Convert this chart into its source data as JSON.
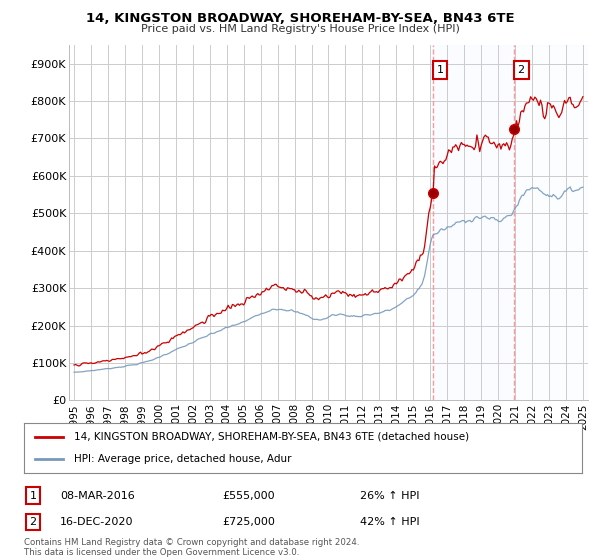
{
  "title1": "14, KINGSTON BROADWAY, SHOREHAM-BY-SEA, BN43 6TE",
  "title2": "Price paid vs. HM Land Registry's House Price Index (HPI)",
  "ylabel_ticks": [
    "£0",
    "£100K",
    "£200K",
    "£300K",
    "£400K",
    "£500K",
    "£600K",
    "£700K",
    "£800K",
    "£900K"
  ],
  "ytick_vals": [
    0,
    100000,
    200000,
    300000,
    400000,
    500000,
    600000,
    700000,
    800000,
    900000
  ],
  "ylim": [
    0,
    950000
  ],
  "xlim_start": 1994.7,
  "xlim_end": 2025.3,
  "red_line_color": "#cc0000",
  "blue_line_color": "#7799bb",
  "vline_color": "#ff9999",
  "shade_color": "#ddeeff",
  "marker1_x": 2016.17,
  "marker1_y": 555000,
  "marker2_x": 2020.96,
  "marker2_y": 725000,
  "legend_label1": "14, KINGSTON BROADWAY, SHOREHAM-BY-SEA, BN43 6TE (detached house)",
  "legend_label2": "HPI: Average price, detached house, Adur",
  "ann1_label": "1",
  "ann2_label": "2",
  "ann1_date": "08-MAR-2016",
  "ann1_price": "£555,000",
  "ann1_hpi": "26% ↑ HPI",
  "ann2_date": "16-DEC-2020",
  "ann2_price": "£725,000",
  "ann2_hpi": "42% ↑ HPI",
  "footnote": "Contains HM Land Registry data © Crown copyright and database right 2024.\nThis data is licensed under the Open Government Licence v3.0.",
  "bg_color": "#ffffff",
  "grid_color": "#cccccc",
  "xtick_years": [
    1995,
    1996,
    1997,
    1998,
    1999,
    2000,
    2001,
    2002,
    2003,
    2004,
    2005,
    2006,
    2007,
    2008,
    2009,
    2010,
    2011,
    2012,
    2013,
    2014,
    2015,
    2016,
    2017,
    2018,
    2019,
    2020,
    2021,
    2022,
    2023,
    2024,
    2025
  ]
}
